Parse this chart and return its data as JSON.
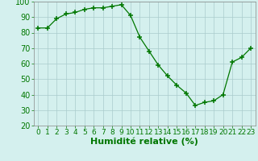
{
  "x": [
    0,
    1,
    2,
    3,
    4,
    5,
    6,
    7,
    8,
    9,
    10,
    11,
    12,
    13,
    14,
    15,
    16,
    17,
    18,
    19,
    20,
    21,
    22,
    23
  ],
  "y": [
    83,
    83,
    89,
    92,
    93,
    95,
    96,
    96,
    97,
    98,
    91,
    77,
    68,
    59,
    52,
    46,
    41,
    33,
    35,
    36,
    40,
    61,
    64,
    70
  ],
  "xlabel": "Humidité relative (%)",
  "ylim": [
    20,
    100
  ],
  "xlim": [
    -0.5,
    23.5
  ],
  "yticks": [
    20,
    30,
    40,
    50,
    60,
    70,
    80,
    90,
    100
  ],
  "xticks": [
    0,
    1,
    2,
    3,
    4,
    5,
    6,
    7,
    8,
    9,
    10,
    11,
    12,
    13,
    14,
    15,
    16,
    17,
    18,
    19,
    20,
    21,
    22,
    23
  ],
  "line_color": "#007700",
  "marker_color": "#007700",
  "bg_color": "#d4f0ee",
  "grid_color": "#aacccc",
  "tick_color": "#007700",
  "xlabel_color": "#007700",
  "xlabel_fontsize": 8,
  "tick_fontsize": 6.5,
  "ytick_fontsize": 7
}
